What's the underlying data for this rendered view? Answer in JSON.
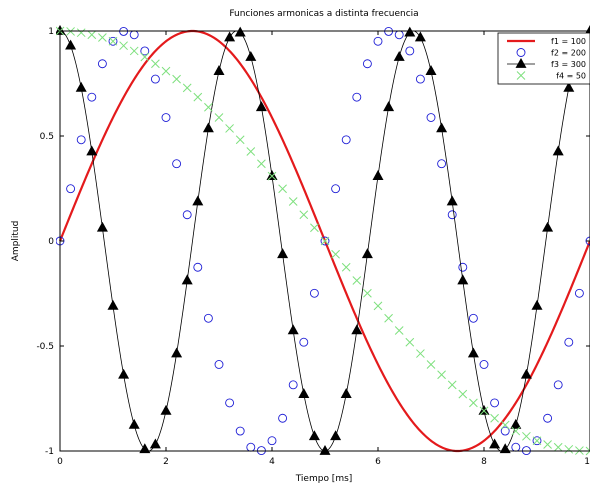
{
  "chart_data": {
    "type": "line",
    "title": "Funciones armonicas a distinta frecuencia",
    "xlabel": "Tiempo [ms]",
    "ylabel": "Amplitud",
    "xlim": [
      0,
      10
    ],
    "ylim": [
      -1,
      1
    ],
    "xticks": [
      0,
      2,
      4,
      6,
      8,
      10
    ],
    "xtick_labels": [
      "0",
      "2",
      "4",
      "6",
      "8",
      "10"
    ],
    "yticks": [
      -1,
      -0.5,
      0,
      0.5,
      1
    ],
    "ytick_labels": [
      "-1",
      "-0.5",
      "0",
      "0.5",
      "1"
    ],
    "grid": false,
    "legend_position": "top-right",
    "series": [
      {
        "name": "f1 = 100",
        "style": "line",
        "color": "#e41a1c",
        "function": "sin",
        "frequency_hz": 100,
        "x": [
          0,
          0.2,
          0.4,
          0.6,
          0.8,
          1.0,
          1.2,
          1.4,
          1.6,
          1.8,
          2.0,
          2.2,
          2.4,
          2.6,
          2.8,
          3.0,
          3.2,
          3.4,
          3.6,
          3.8,
          4.0,
          4.2,
          4.4,
          4.6,
          4.8,
          5.0,
          5.2,
          5.4,
          5.6,
          5.8,
          6.0,
          6.2,
          6.4,
          6.6,
          6.8,
          7.0,
          7.2,
          7.4,
          7.6,
          7.8,
          8.0,
          8.2,
          8.4,
          8.6,
          8.8,
          9.0,
          9.2,
          9.4,
          9.6,
          9.8,
          10.0
        ],
        "y": [
          0,
          0.125,
          0.249,
          0.368,
          0.482,
          0.588,
          0.685,
          0.771,
          0.844,
          0.905,
          0.951,
          0.982,
          0.998,
          0.998,
          0.982,
          0.951,
          0.905,
          0.844,
          0.771,
          0.685,
          0.588,
          0.482,
          0.368,
          0.249,
          0.125,
          0,
          -0.125,
          -0.249,
          -0.368,
          -0.482,
          -0.588,
          -0.685,
          -0.771,
          -0.844,
          -0.905,
          -0.951,
          -0.982,
          -0.998,
          -0.998,
          -0.982,
          -0.951,
          -0.905,
          -0.844,
          -0.771,
          -0.685,
          -0.588,
          -0.482,
          -0.368,
          -0.249,
          -0.125,
          0
        ]
      },
      {
        "name": "f2 = 200",
        "style": "circle-markers",
        "color": "#1f1fd6",
        "function": "sin",
        "frequency_hz": 200,
        "x": [
          0,
          0.2,
          0.4,
          0.6,
          0.8,
          1.0,
          1.2,
          1.4,
          1.6,
          1.8,
          2.0,
          2.2,
          2.4,
          2.6,
          2.8,
          3.0,
          3.2,
          3.4,
          3.6,
          3.8,
          4.0,
          4.2,
          4.4,
          4.6,
          4.8,
          5.0,
          5.2,
          5.4,
          5.6,
          5.8,
          6.0,
          6.2,
          6.4,
          6.6,
          6.8,
          7.0,
          7.2,
          7.4,
          7.6,
          7.8,
          8.0,
          8.2,
          8.4,
          8.6,
          8.8,
          9.0,
          9.2,
          9.4,
          9.6,
          9.8,
          10.0
        ],
        "y": [
          0,
          0.249,
          0.482,
          0.685,
          0.844,
          0.951,
          0.998,
          0.982,
          0.905,
          0.771,
          0.588,
          0.368,
          0.125,
          -0.125,
          -0.368,
          -0.588,
          -0.771,
          -0.905,
          -0.982,
          -0.998,
          -0.951,
          -0.844,
          -0.685,
          -0.482,
          -0.249,
          0,
          0.249,
          0.482,
          0.685,
          0.844,
          0.951,
          0.998,
          0.982,
          0.905,
          0.771,
          0.588,
          0.368,
          0.125,
          -0.125,
          -0.368,
          -0.588,
          -0.771,
          -0.905,
          -0.982,
          -0.998,
          -0.951,
          -0.844,
          -0.685,
          -0.482,
          -0.249,
          0
        ]
      },
      {
        "name": "f3 = 300",
        "style": "line-triangle-markers",
        "color": "#000000",
        "function": "cos",
        "frequency_hz": 300,
        "x": [
          0,
          0.2,
          0.4,
          0.6,
          0.8,
          1.0,
          1.2,
          1.4,
          1.6,
          1.8,
          2.0,
          2.2,
          2.4,
          2.6,
          2.8,
          3.0,
          3.2,
          3.4,
          3.6,
          3.8,
          4.0,
          4.2,
          4.4,
          4.6,
          4.8,
          5.0,
          5.2,
          5.4,
          5.6,
          5.8,
          6.0,
          6.2,
          6.4,
          6.6,
          6.8,
          7.0,
          7.2,
          7.4,
          7.6,
          7.8,
          8.0,
          8.2,
          8.4,
          8.6,
          8.8,
          9.0,
          9.2,
          9.4,
          9.6,
          9.8,
          10.0
        ],
        "y": [
          1,
          0.93,
          0.729,
          0.426,
          0.063,
          -0.309,
          -0.637,
          -0.876,
          -0.992,
          -0.969,
          -0.809,
          -0.536,
          -0.188,
          0.188,
          0.536,
          0.809,
          0.969,
          0.992,
          0.876,
          0.637,
          0.309,
          -0.063,
          -0.426,
          -0.729,
          -0.93,
          -1,
          -0.93,
          -0.729,
          -0.426,
          -0.063,
          0.309,
          0.637,
          0.876,
          0.992,
          0.969,
          0.809,
          0.536,
          0.188,
          -0.188,
          -0.536,
          -0.809,
          -0.969,
          -0.992,
          -0.876,
          -0.637,
          -0.309,
          0.063,
          0.426,
          0.729,
          0.93,
          1
        ]
      },
      {
        "name": "f4 = 50",
        "style": "x-markers",
        "color": "#7ee07e",
        "function": "cos",
        "frequency_hz": 50,
        "x": [
          0,
          0.2,
          0.4,
          0.6,
          0.8,
          1.0,
          1.2,
          1.4,
          1.6,
          1.8,
          2.0,
          2.2,
          2.4,
          2.6,
          2.8,
          3.0,
          3.2,
          3.4,
          3.6,
          3.8,
          4.0,
          4.2,
          4.4,
          4.6,
          4.8,
          5.0,
          5.2,
          5.4,
          5.6,
          5.8,
          6.0,
          6.2,
          6.4,
          6.6,
          6.8,
          7.0,
          7.2,
          7.4,
          7.6,
          7.8,
          8.0,
          8.2,
          8.4,
          8.6,
          8.8,
          9.0,
          9.2,
          9.4,
          9.6,
          9.8,
          10.0
        ],
        "y": [
          1,
          0.998,
          0.992,
          0.982,
          0.969,
          0.951,
          0.93,
          0.905,
          0.876,
          0.844,
          0.809,
          0.771,
          0.729,
          0.685,
          0.637,
          0.588,
          0.536,
          0.482,
          0.426,
          0.368,
          0.309,
          0.249,
          0.188,
          0.125,
          0.063,
          0,
          -0.063,
          -0.125,
          -0.188,
          -0.249,
          -0.309,
          -0.368,
          -0.426,
          -0.482,
          -0.536,
          -0.588,
          -0.637,
          -0.685,
          -0.729,
          -0.771,
          -0.809,
          -0.844,
          -0.876,
          -0.905,
          -0.93,
          -0.951,
          -0.969,
          -0.982,
          -0.992,
          -0.998,
          -1
        ]
      }
    ]
  }
}
